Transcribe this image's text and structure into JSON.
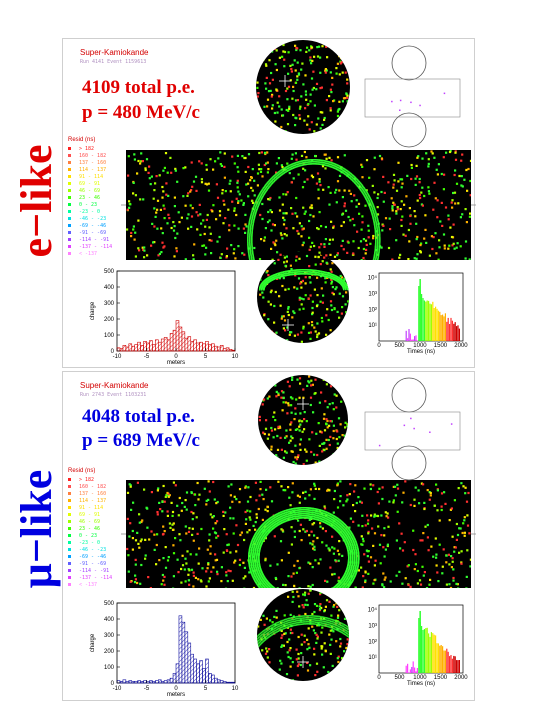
{
  "figure": {
    "panels": [
      {
        "id": "e",
        "side_label": "e−like",
        "side_color": "#e00000",
        "header": "Super-Kamiokande",
        "run_line": "Run 4141 Event 1159613",
        "pe_text": "4109 total p.e.",
        "momentum_text": "p = 480 MeV/c",
        "text_color": "#e00000",
        "hist_color": "#d00000"
      },
      {
        "id": "mu",
        "side_label": "μ−like",
        "side_color": "#0000e0",
        "header": "Super-Kamiokande",
        "run_line": "Run 2743 Event 1103231",
        "pe_text": "4048 total p.e.",
        "momentum_text": "p = 689 MeV/c",
        "text_color": "#0000e0",
        "hist_color": "#1010a0"
      }
    ],
    "legend": {
      "title": "Resid (ns)",
      "rows": [
        {
          "label": "> 182",
          "color": "#ff2020"
        },
        {
          "label": "160 - 182",
          "color": "#ff5050"
        },
        {
          "label": "137 - 160",
          "color": "#ff8040"
        },
        {
          "label": "114 - 137",
          "color": "#ffb000"
        },
        {
          "label": "91 - 114",
          "color": "#ffe000"
        },
        {
          "label": "69 - 91",
          "color": "#e0ff00"
        },
        {
          "label": "46 - 69",
          "color": "#a0ff00"
        },
        {
          "label": "23 - 46",
          "color": "#40ff00"
        },
        {
          "label": "0 - 23",
          "color": "#00ff40"
        },
        {
          "label": "-23 - 0",
          "color": "#00ffa0"
        },
        {
          "label": "-46 - -23",
          "color": "#00e0e0"
        },
        {
          "label": "-69 - -46",
          "color": "#00a0ff"
        },
        {
          "label": "-91 - -69",
          "color": "#6060ff"
        },
        {
          "label": "-114 - -91",
          "color": "#a040ff"
        },
        {
          "label": "-137 - -114",
          "color": "#e040ff"
        },
        {
          "label": "< -137",
          "color": "#ff80ff"
        }
      ]
    },
    "charge_hist": {
      "xlabel": "meters",
      "ylabel": "charge",
      "xticks": [
        "-10",
        "-5",
        "0",
        "5",
        "10"
      ],
      "yticks": [
        "0",
        "100",
        "200",
        "300",
        "400",
        "500"
      ]
    },
    "time_hist": {
      "xlabel": "Times (ns)",
      "xticks": [
        "0",
        "500",
        "1000",
        "1500",
        "2000"
      ],
      "yticks": [
        "10¹",
        "10²",
        "10³",
        "10⁴"
      ]
    }
  },
  "chart_data": [
    {
      "type": "bar",
      "panel": "e",
      "xlabel": "meters",
      "ylabel": "charge",
      "xlim": [
        -10,
        10
      ],
      "ylim": [
        0,
        500
      ],
      "x": [
        -10,
        -9.5,
        -9,
        -8.5,
        -8,
        -7.5,
        -7,
        -6.5,
        -6,
        -5.5,
        -5,
        -4.5,
        -4,
        -3.5,
        -3,
        -2.5,
        -2,
        -1.5,
        -1,
        -0.5,
        0,
        0.5,
        1,
        1.5,
        2,
        2.5,
        3,
        3.5,
        4,
        4.5,
        5,
        5.5,
        6,
        6.5,
        7,
        7.5,
        8,
        8.5,
        9,
        9.5
      ],
      "values": [
        20,
        15,
        35,
        25,
        45,
        30,
        40,
        55,
        35,
        60,
        50,
        65,
        40,
        70,
        55,
        75,
        85,
        70,
        110,
        130,
        190,
        150,
        120,
        80,
        90,
        60,
        70,
        50,
        55,
        45,
        60,
        40,
        45,
        30,
        25,
        35,
        15,
        20,
        10,
        5
      ]
    },
    {
      "type": "bar",
      "panel": "mu",
      "xlabel": "meters",
      "ylabel": "charge",
      "xlim": [
        -10,
        10
      ],
      "ylim": [
        0,
        500
      ],
      "x": [
        -10,
        -9.5,
        -9,
        -8.5,
        -8,
        -7.5,
        -7,
        -6.5,
        -6,
        -5.5,
        -5,
        -4.5,
        -4,
        -3.5,
        -3,
        -2.5,
        -2,
        -1.5,
        -1,
        -0.5,
        0,
        0.5,
        1,
        1.5,
        2,
        2.5,
        3,
        3.5,
        4,
        4.5,
        5,
        5.5,
        6,
        6.5,
        7,
        7.5,
        8,
        8.5,
        9,
        9.5
      ],
      "values": [
        15,
        10,
        20,
        10,
        15,
        10,
        10,
        15,
        10,
        15,
        10,
        15,
        10,
        15,
        20,
        10,
        15,
        20,
        30,
        60,
        120,
        420,
        380,
        320,
        250,
        180,
        150,
        120,
        140,
        90,
        150,
        60,
        50,
        30,
        20,
        15,
        10,
        5,
        5,
        5
      ]
    }
  ]
}
